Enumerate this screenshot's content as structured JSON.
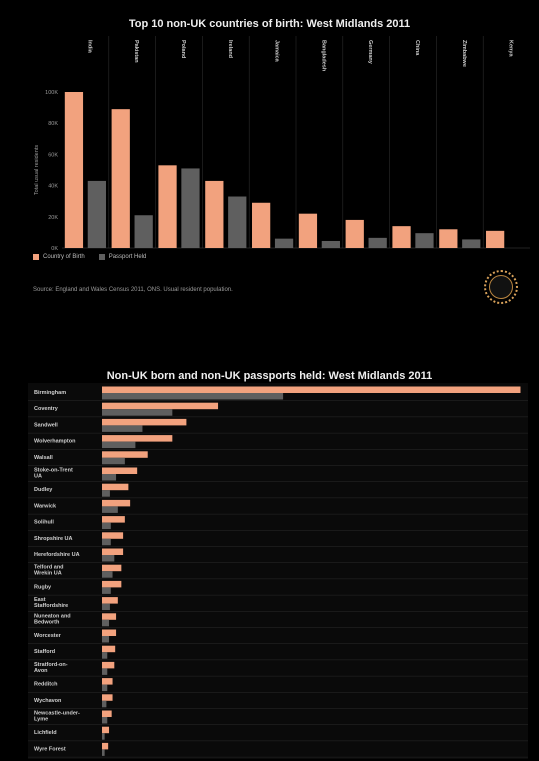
{
  "colors": {
    "birth": "#f2a27e",
    "passport": "#5f5f5f",
    "grid": "#2b2b2b",
    "bg": "#000000"
  },
  "chart_data": [
    {
      "type": "bar",
      "title": "Top 10 non-UK countries of birth: West Midlands 2011",
      "ylabel": "Total usual residents",
      "ylim": [
        0,
        100000
      ],
      "yticks": [
        0,
        20000,
        40000,
        60000,
        80000,
        100000
      ],
      "ytick_labels": [
        "0K",
        "20K",
        "40K",
        "60K",
        "80K",
        "100K"
      ],
      "categories": [
        "India",
        "Pakistan",
        "Poland",
        "Ireland",
        "Jamaica",
        "Bangladesh",
        "Germany",
        "China",
        "Zimbabwe",
        "Kenya"
      ],
      "series": [
        {
          "name": "Country of Birth",
          "values": [
            100000,
            89000,
            53000,
            43000,
            29000,
            22000,
            18000,
            14000,
            12000,
            11000
          ]
        },
        {
          "name": "Passport Held",
          "values": [
            43000,
            21000,
            51000,
            33000,
            6000,
            4500,
            6500,
            9500,
            5500,
            0
          ]
        }
      ],
      "legend": "bottom-left",
      "source": "Source: England and Wales Census 2011, ONS. Usual resident population."
    },
    {
      "type": "bar",
      "orientation": "horizontal",
      "title": "Non-UK born and non-UK passports held: West Midlands 2011",
      "categories": [
        "Birmingham",
        "Coventry",
        "Sandwell",
        "Wolverhampton",
        "Walsall",
        "Stoke-on-Trent UA",
        "Dudley",
        "Warwick",
        "Solihull",
        "Shropshire UA",
        "Herefordshire UA",
        "Telford and Wrekin UA",
        "Rugby",
        "East Staffordshire",
        "Nuneaton and Bedworth",
        "Worcester",
        "Stafford",
        "Stratford-on-Avon",
        "Redditch",
        "Wychavon",
        "Newcastle-under-Lyme",
        "Lichfield",
        "Wyre Forest"
      ],
      "series": [
        {
          "name": "Country of Birth",
          "values": [
            238000,
            66000,
            48000,
            40000,
            26000,
            20000,
            15000,
            16000,
            13000,
            12000,
            12000,
            11000,
            11000,
            9000,
            8000,
            8000,
            7500,
            7000,
            6000,
            6000,
            5500,
            4000,
            3500
          ]
        },
        {
          "name": "Passport Held",
          "values": [
            103000,
            40000,
            23000,
            19000,
            13000,
            8000,
            4500,
            9000,
            5000,
            5000,
            7000,
            6000,
            5000,
            4500,
            4000,
            4000,
            3000,
            3000,
            3000,
            2500,
            3000,
            1500,
            1500
          ]
        }
      ],
      "xlim": [
        0,
        240000
      ]
    }
  ],
  "legend": {
    "birth": "Country of Birth",
    "passport": "Passport Held"
  },
  "logo_text": "THE MIGRATION OBSERVATORY"
}
